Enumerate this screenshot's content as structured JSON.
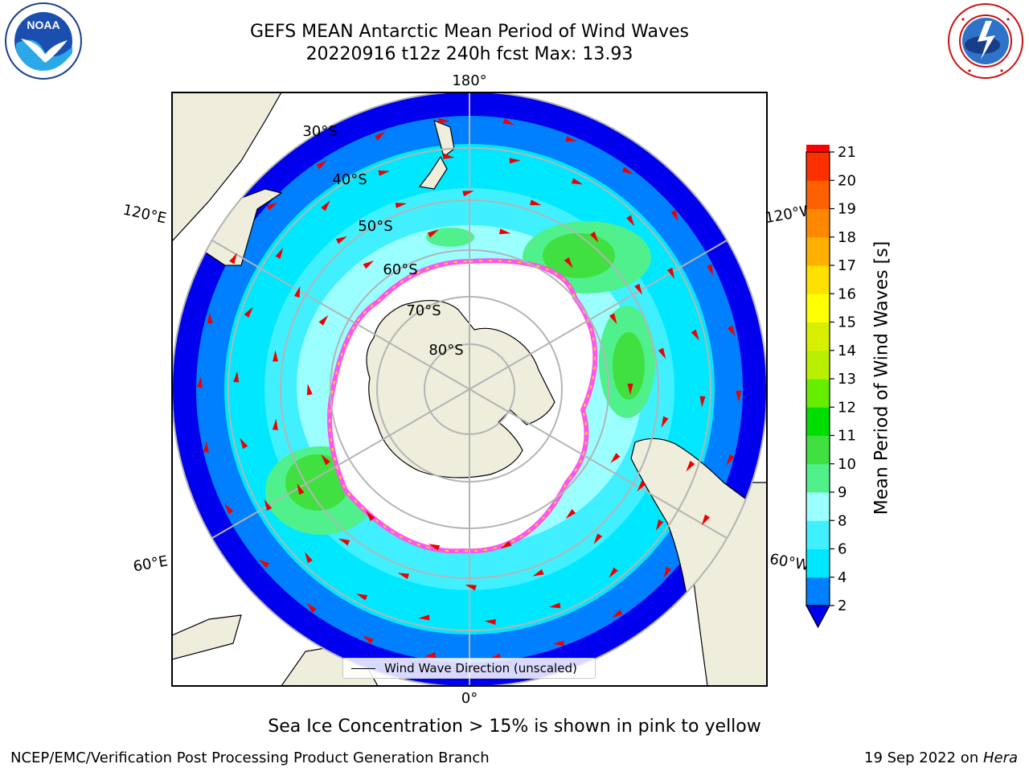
{
  "header": {
    "title_line1": "GEFS MEAN Antarctic Mean Period of Wind Waves",
    "title_line2": "20220916 t12z 240h fcst   Max: 13.93"
  },
  "logos": {
    "left": {
      "icon": "noaa-logo-icon",
      "text": "NOAA",
      "ring_text": "NATIONAL OCEANIC AND ATMOSPHERIC ADMINISTRATION · U.S. DEPARTMENT OF COMMERCE"
    },
    "right": {
      "icon": "nws-logo-icon",
      "ring_text": "NATIONAL WEATHER SERVICE"
    }
  },
  "map": {
    "longitude_labels": {
      "top": "180°",
      "bottom": "0°",
      "upper_left": "120°E",
      "upper_right": "120°W",
      "lower_left": "60°E",
      "lower_right": "60°W"
    },
    "latitude_labels": [
      "30°S",
      "40°S",
      "50°S",
      "60°S",
      "70°S",
      "80°S"
    ],
    "legend_label": "Wind Wave Direction (unscaled)",
    "colors": {
      "land": "#efeddc",
      "ice_edge_pink": "#ff55ee",
      "ice_edge_yellow": "#ffd020",
      "arrow": "#ee0000",
      "grid": "#b4b4b4"
    }
  },
  "colorbar": {
    "label": "Mean Period of Wind Waves [s]",
    "ticks": [
      "21",
      "20",
      "19",
      "18",
      "17",
      "16",
      "15",
      "14",
      "13",
      "12",
      "11",
      "10",
      "9",
      "8",
      "6",
      "4",
      "2"
    ],
    "bands": [
      "#0000ee",
      "#0080ff",
      "#00e8ff",
      "#40f0ff",
      "#9bffff",
      "#50f08c",
      "#40e040",
      "#00dd00",
      "#66ee00",
      "#b8f000",
      "#d8f000",
      "#ffff00",
      "#ffe000",
      "#ffb000",
      "#ff8800",
      "#ff6000",
      "#ff3000",
      "#ff0000"
    ]
  },
  "caption": "Sea Ice Concentration > 15% is shown in pink to yellow",
  "footer": {
    "left": "NCEP/EMC/Verification Post Processing Product Generation Branch",
    "right_date": "19 Sep 2022 on ",
    "right_host": "Hera"
  }
}
